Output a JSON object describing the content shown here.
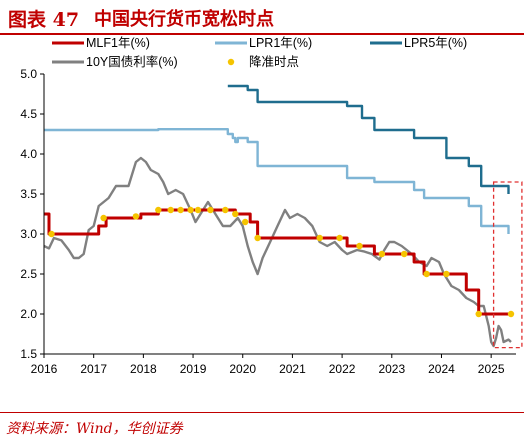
{
  "header": {
    "figure_label": "图表 47",
    "title": "中国央行货币宽松时点"
  },
  "footer": {
    "source": "资料来源：Wind，华创证券"
  },
  "colors": {
    "mlf": "#c00000",
    "lpr1": "#7fb5d5",
    "lpr5": "#1f6d8e",
    "y10": "#808080",
    "cut_marker": "#f5c400",
    "highlight_box": "#e03030",
    "title": "#c00000"
  },
  "chart_data": {
    "type": "line",
    "title": "",
    "xlabel": "",
    "ylabel": "",
    "xlim": [
      2016.0,
      2025.5
    ],
    "ylim": [
      1.5,
      5.0
    ],
    "x_ticks": [
      "2016",
      "2017",
      "2018",
      "2019",
      "2020",
      "2021",
      "2022",
      "2023",
      "2024",
      "2025"
    ],
    "y_ticks": [
      "1.5",
      "2.0",
      "2.5",
      "3.0",
      "3.5",
      "4.0",
      "4.5",
      "5.0"
    ],
    "grid": false,
    "legend": {
      "placement": "top",
      "entries": [
        "MLF1年(%)",
        "LPR1年(%)",
        "LPR5年(%)",
        "10Y国债利率(%)",
        "降准时点"
      ]
    },
    "series": [
      {
        "name": "MLF1年(%)",
        "style": "step",
        "points": [
          [
            2016.0,
            3.25
          ],
          [
            2016.1,
            3.0
          ],
          [
            2017.1,
            3.1
          ],
          [
            2017.25,
            3.2
          ],
          [
            2017.95,
            3.25
          ],
          [
            2018.3,
            3.3
          ],
          [
            2019.85,
            3.25
          ],
          [
            2020.15,
            3.15
          ],
          [
            2020.3,
            2.95
          ],
          [
            2022.1,
            2.85
          ],
          [
            2022.65,
            2.75
          ],
          [
            2023.45,
            2.65
          ],
          [
            2023.65,
            2.5
          ],
          [
            2024.5,
            2.3
          ],
          [
            2024.75,
            2.0
          ],
          [
            2025.35,
            2.0
          ]
        ]
      },
      {
        "name": "LPR1年(%)",
        "style": "step",
        "points": [
          [
            2016.0,
            4.3
          ],
          [
            2018.3,
            4.31
          ],
          [
            2019.65,
            4.31
          ],
          [
            2019.7,
            4.25
          ],
          [
            2019.8,
            4.2
          ],
          [
            2019.85,
            4.15
          ],
          [
            2019.9,
            4.2
          ],
          [
            2020.1,
            4.15
          ],
          [
            2020.3,
            4.05
          ],
          [
            2020.3,
            3.85
          ],
          [
            2022.1,
            3.8
          ],
          [
            2022.1,
            3.7
          ],
          [
            2022.65,
            3.65
          ],
          [
            2023.45,
            3.55
          ],
          [
            2023.65,
            3.45
          ],
          [
            2024.55,
            3.35
          ],
          [
            2024.8,
            3.1
          ],
          [
            2025.3,
            3.1
          ],
          [
            2025.35,
            3.0
          ]
        ]
      },
      {
        "name": "LPR5年(%)",
        "style": "step",
        "points": [
          [
            2019.7,
            4.85
          ],
          [
            2020.1,
            4.8
          ],
          [
            2020.3,
            4.75
          ],
          [
            2020.3,
            4.65
          ],
          [
            2022.1,
            4.6
          ],
          [
            2022.4,
            4.45
          ],
          [
            2022.65,
            4.3
          ],
          [
            2023.45,
            4.2
          ],
          [
            2024.1,
            3.95
          ],
          [
            2024.55,
            3.85
          ],
          [
            2024.8,
            3.6
          ],
          [
            2025.3,
            3.6
          ],
          [
            2025.35,
            3.5
          ]
        ]
      },
      {
        "name": "10Y国债利率(%)",
        "style": "line",
        "points": [
          [
            2016.0,
            2.85
          ],
          [
            2016.1,
            2.82
          ],
          [
            2016.2,
            2.95
          ],
          [
            2016.35,
            2.92
          ],
          [
            2016.5,
            2.8
          ],
          [
            2016.6,
            2.7
          ],
          [
            2016.7,
            2.7
          ],
          [
            2016.8,
            2.75
          ],
          [
            2016.9,
            3.05
          ],
          [
            2017.0,
            3.1
          ],
          [
            2017.1,
            3.35
          ],
          [
            2017.3,
            3.45
          ],
          [
            2017.45,
            3.6
          ],
          [
            2017.55,
            3.6
          ],
          [
            2017.7,
            3.6
          ],
          [
            2017.85,
            3.9
          ],
          [
            2017.95,
            3.95
          ],
          [
            2018.05,
            3.9
          ],
          [
            2018.15,
            3.8
          ],
          [
            2018.3,
            3.75
          ],
          [
            2018.4,
            3.65
          ],
          [
            2018.5,
            3.5
          ],
          [
            2018.65,
            3.55
          ],
          [
            2018.8,
            3.5
          ],
          [
            2018.95,
            3.3
          ],
          [
            2019.05,
            3.15
          ],
          [
            2019.2,
            3.3
          ],
          [
            2019.3,
            3.4
          ],
          [
            2019.45,
            3.25
          ],
          [
            2019.6,
            3.1
          ],
          [
            2019.75,
            3.1
          ],
          [
            2019.9,
            3.2
          ],
          [
            2020.0,
            3.1
          ],
          [
            2020.1,
            2.85
          ],
          [
            2020.2,
            2.65
          ],
          [
            2020.3,
            2.5
          ],
          [
            2020.4,
            2.7
          ],
          [
            2020.55,
            2.9
          ],
          [
            2020.7,
            3.1
          ],
          [
            2020.85,
            3.3
          ],
          [
            2020.95,
            3.2
          ],
          [
            2021.1,
            3.25
          ],
          [
            2021.25,
            3.2
          ],
          [
            2021.4,
            3.1
          ],
          [
            2021.55,
            2.9
          ],
          [
            2021.7,
            2.85
          ],
          [
            2021.85,
            2.9
          ],
          [
            2022.0,
            2.8
          ],
          [
            2022.1,
            2.75
          ],
          [
            2022.3,
            2.8
          ],
          [
            2022.45,
            2.78
          ],
          [
            2022.6,
            2.75
          ],
          [
            2022.75,
            2.68
          ],
          [
            2022.85,
            2.8
          ],
          [
            2022.95,
            2.9
          ],
          [
            2023.05,
            2.9
          ],
          [
            2023.2,
            2.85
          ],
          [
            2023.4,
            2.75
          ],
          [
            2023.55,
            2.65
          ],
          [
            2023.7,
            2.6
          ],
          [
            2023.8,
            2.7
          ],
          [
            2023.95,
            2.65
          ],
          [
            2024.05,
            2.5
          ],
          [
            2024.2,
            2.35
          ],
          [
            2024.35,
            2.3
          ],
          [
            2024.5,
            2.2
          ],
          [
            2024.65,
            2.15
          ],
          [
            2024.75,
            2.1
          ],
          [
            2024.85,
            2.1
          ],
          [
            2024.95,
            1.85
          ],
          [
            2025.0,
            1.65
          ],
          [
            2025.05,
            1.6
          ],
          [
            2025.1,
            1.7
          ],
          [
            2025.15,
            1.85
          ],
          [
            2025.2,
            1.8
          ],
          [
            2025.25,
            1.65
          ],
          [
            2025.35,
            1.68
          ],
          [
            2025.4,
            1.65
          ]
        ]
      },
      {
        "name": "降准时点",
        "style": "marker",
        "points": [
          [
            2016.15,
            3.0
          ],
          [
            2017.2,
            3.2
          ],
          [
            2017.85,
            3.22
          ],
          [
            2018.3,
            3.3
          ],
          [
            2018.55,
            3.3
          ],
          [
            2018.75,
            3.3
          ],
          [
            2018.95,
            3.3
          ],
          [
            2019.1,
            3.3
          ],
          [
            2019.35,
            3.3
          ],
          [
            2019.65,
            3.3
          ],
          [
            2019.85,
            3.25
          ],
          [
            2020.05,
            3.15
          ],
          [
            2020.3,
            2.95
          ],
          [
            2021.55,
            2.95
          ],
          [
            2021.95,
            2.95
          ],
          [
            2022.35,
            2.85
          ],
          [
            2022.8,
            2.75
          ],
          [
            2023.25,
            2.75
          ],
          [
            2023.7,
            2.5
          ],
          [
            2024.1,
            2.5
          ],
          [
            2024.75,
            2.0
          ],
          [
            2025.4,
            2.0
          ]
        ]
      }
    ],
    "annotations": [
      {
        "type": "dashed-box",
        "x_range": [
          2025.05,
          2025.62
        ],
        "y_range": [
          1.58,
          3.65
        ]
      }
    ]
  }
}
